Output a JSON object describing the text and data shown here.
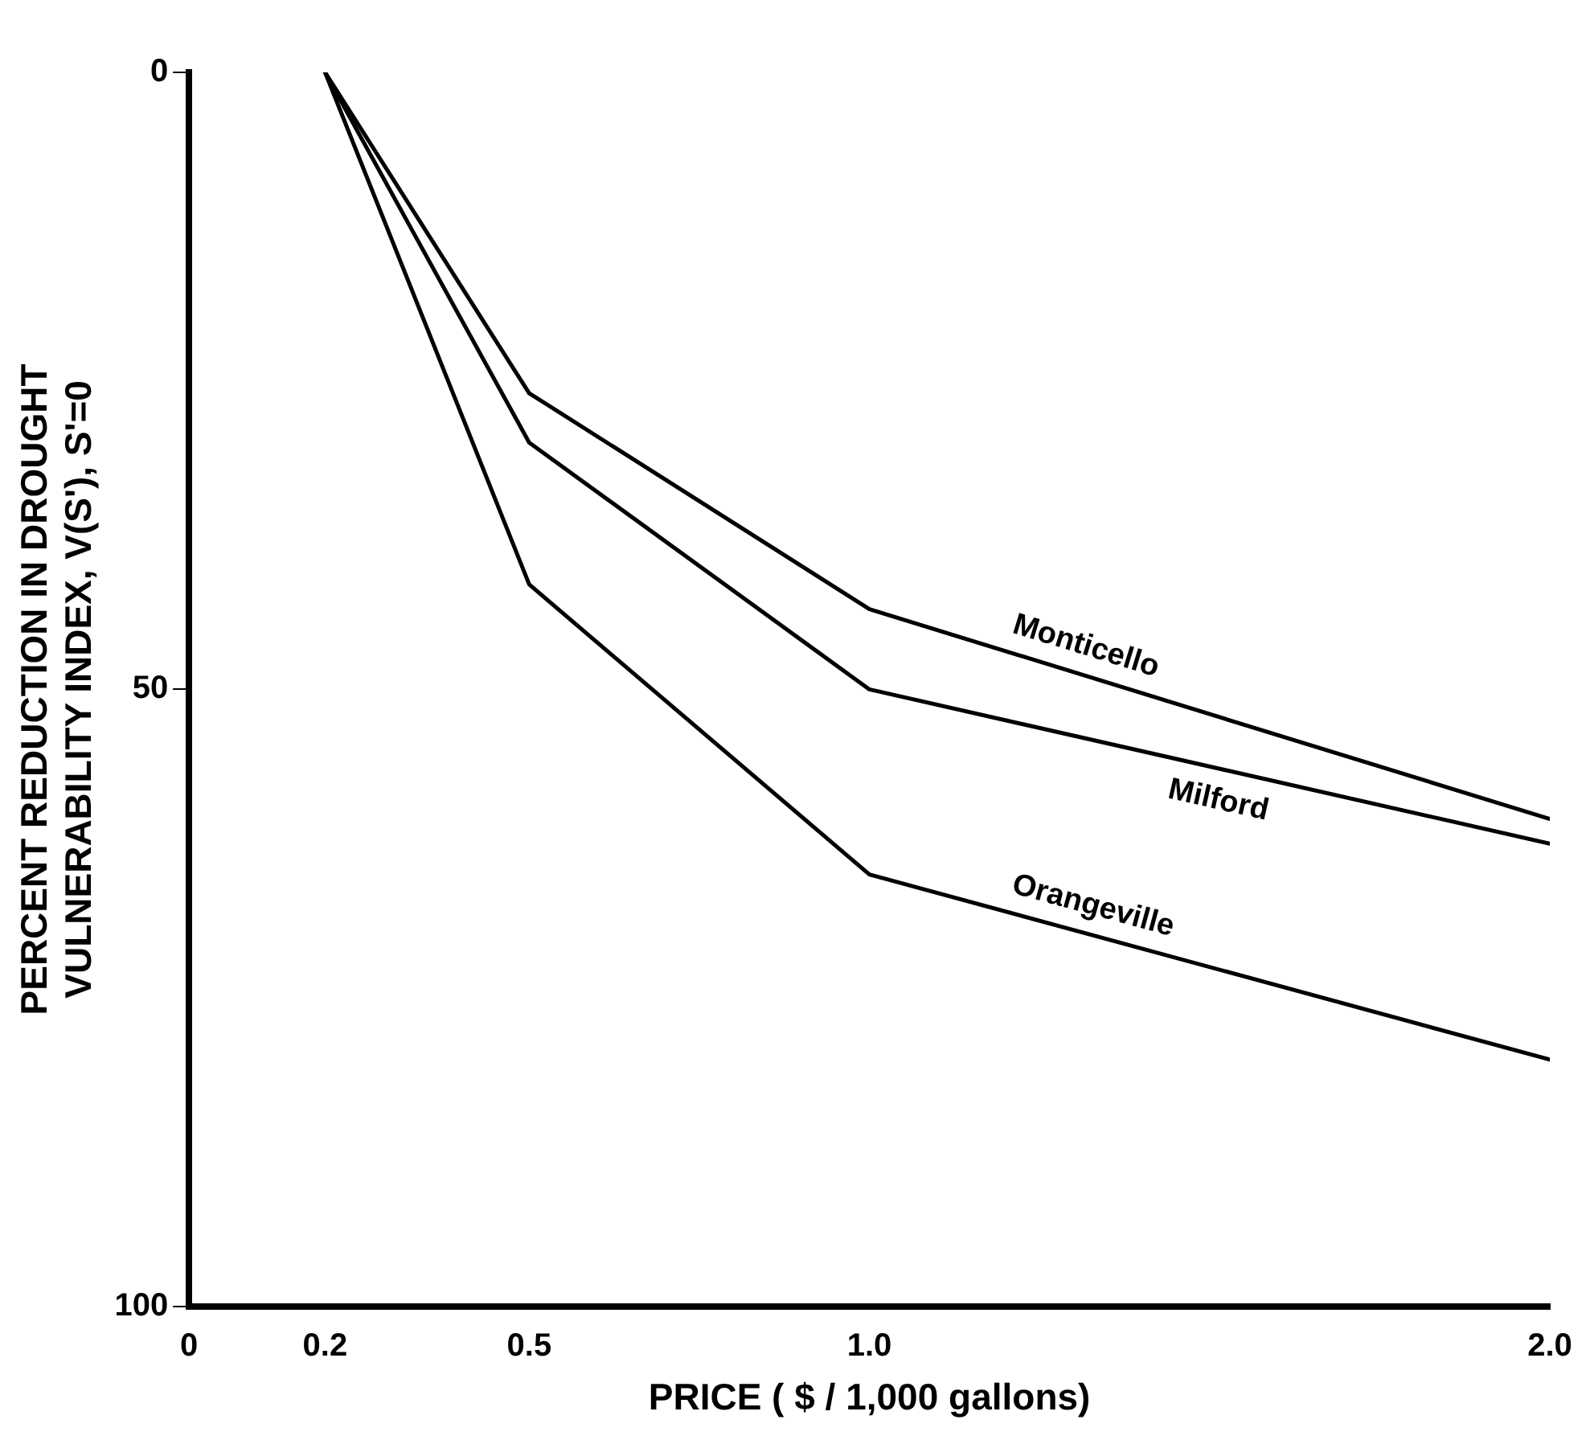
{
  "chart_data": {
    "type": "line",
    "xlabel": "PRICE ( $ / 1,000 gallons)",
    "ylabel": "PERCENT REDUCTION IN DROUGHT VULNERABILITY INDEX, V(S'), S'=0",
    "x": [
      0.2,
      0.5,
      1.0,
      2.0
    ],
    "series": [
      {
        "name": "Monticello",
        "color": "#000000",
        "values": [
          0,
          26,
          43.5,
          60.5
        ]
      },
      {
        "name": "Milford",
        "color": "#000000",
        "values": [
          0,
          30,
          50,
          62.5
        ]
      },
      {
        "name": "Orangeville",
        "color": "#000000",
        "values": [
          0,
          41.5,
          65,
          80
        ]
      }
    ],
    "xlim": [
      0,
      2.0
    ],
    "xticks": [
      0,
      0.2,
      0.5,
      {
        "value": 1.0,
        "label": "1.0"
      },
      {
        "value": 2.0,
        "label": "2.0"
      }
    ],
    "ylim": [
      100,
      0
    ],
    "yticks": [
      0,
      50,
      100
    ],
    "grid": false,
    "legend": false,
    "marker": "none",
    "line_style": "solid"
  }
}
